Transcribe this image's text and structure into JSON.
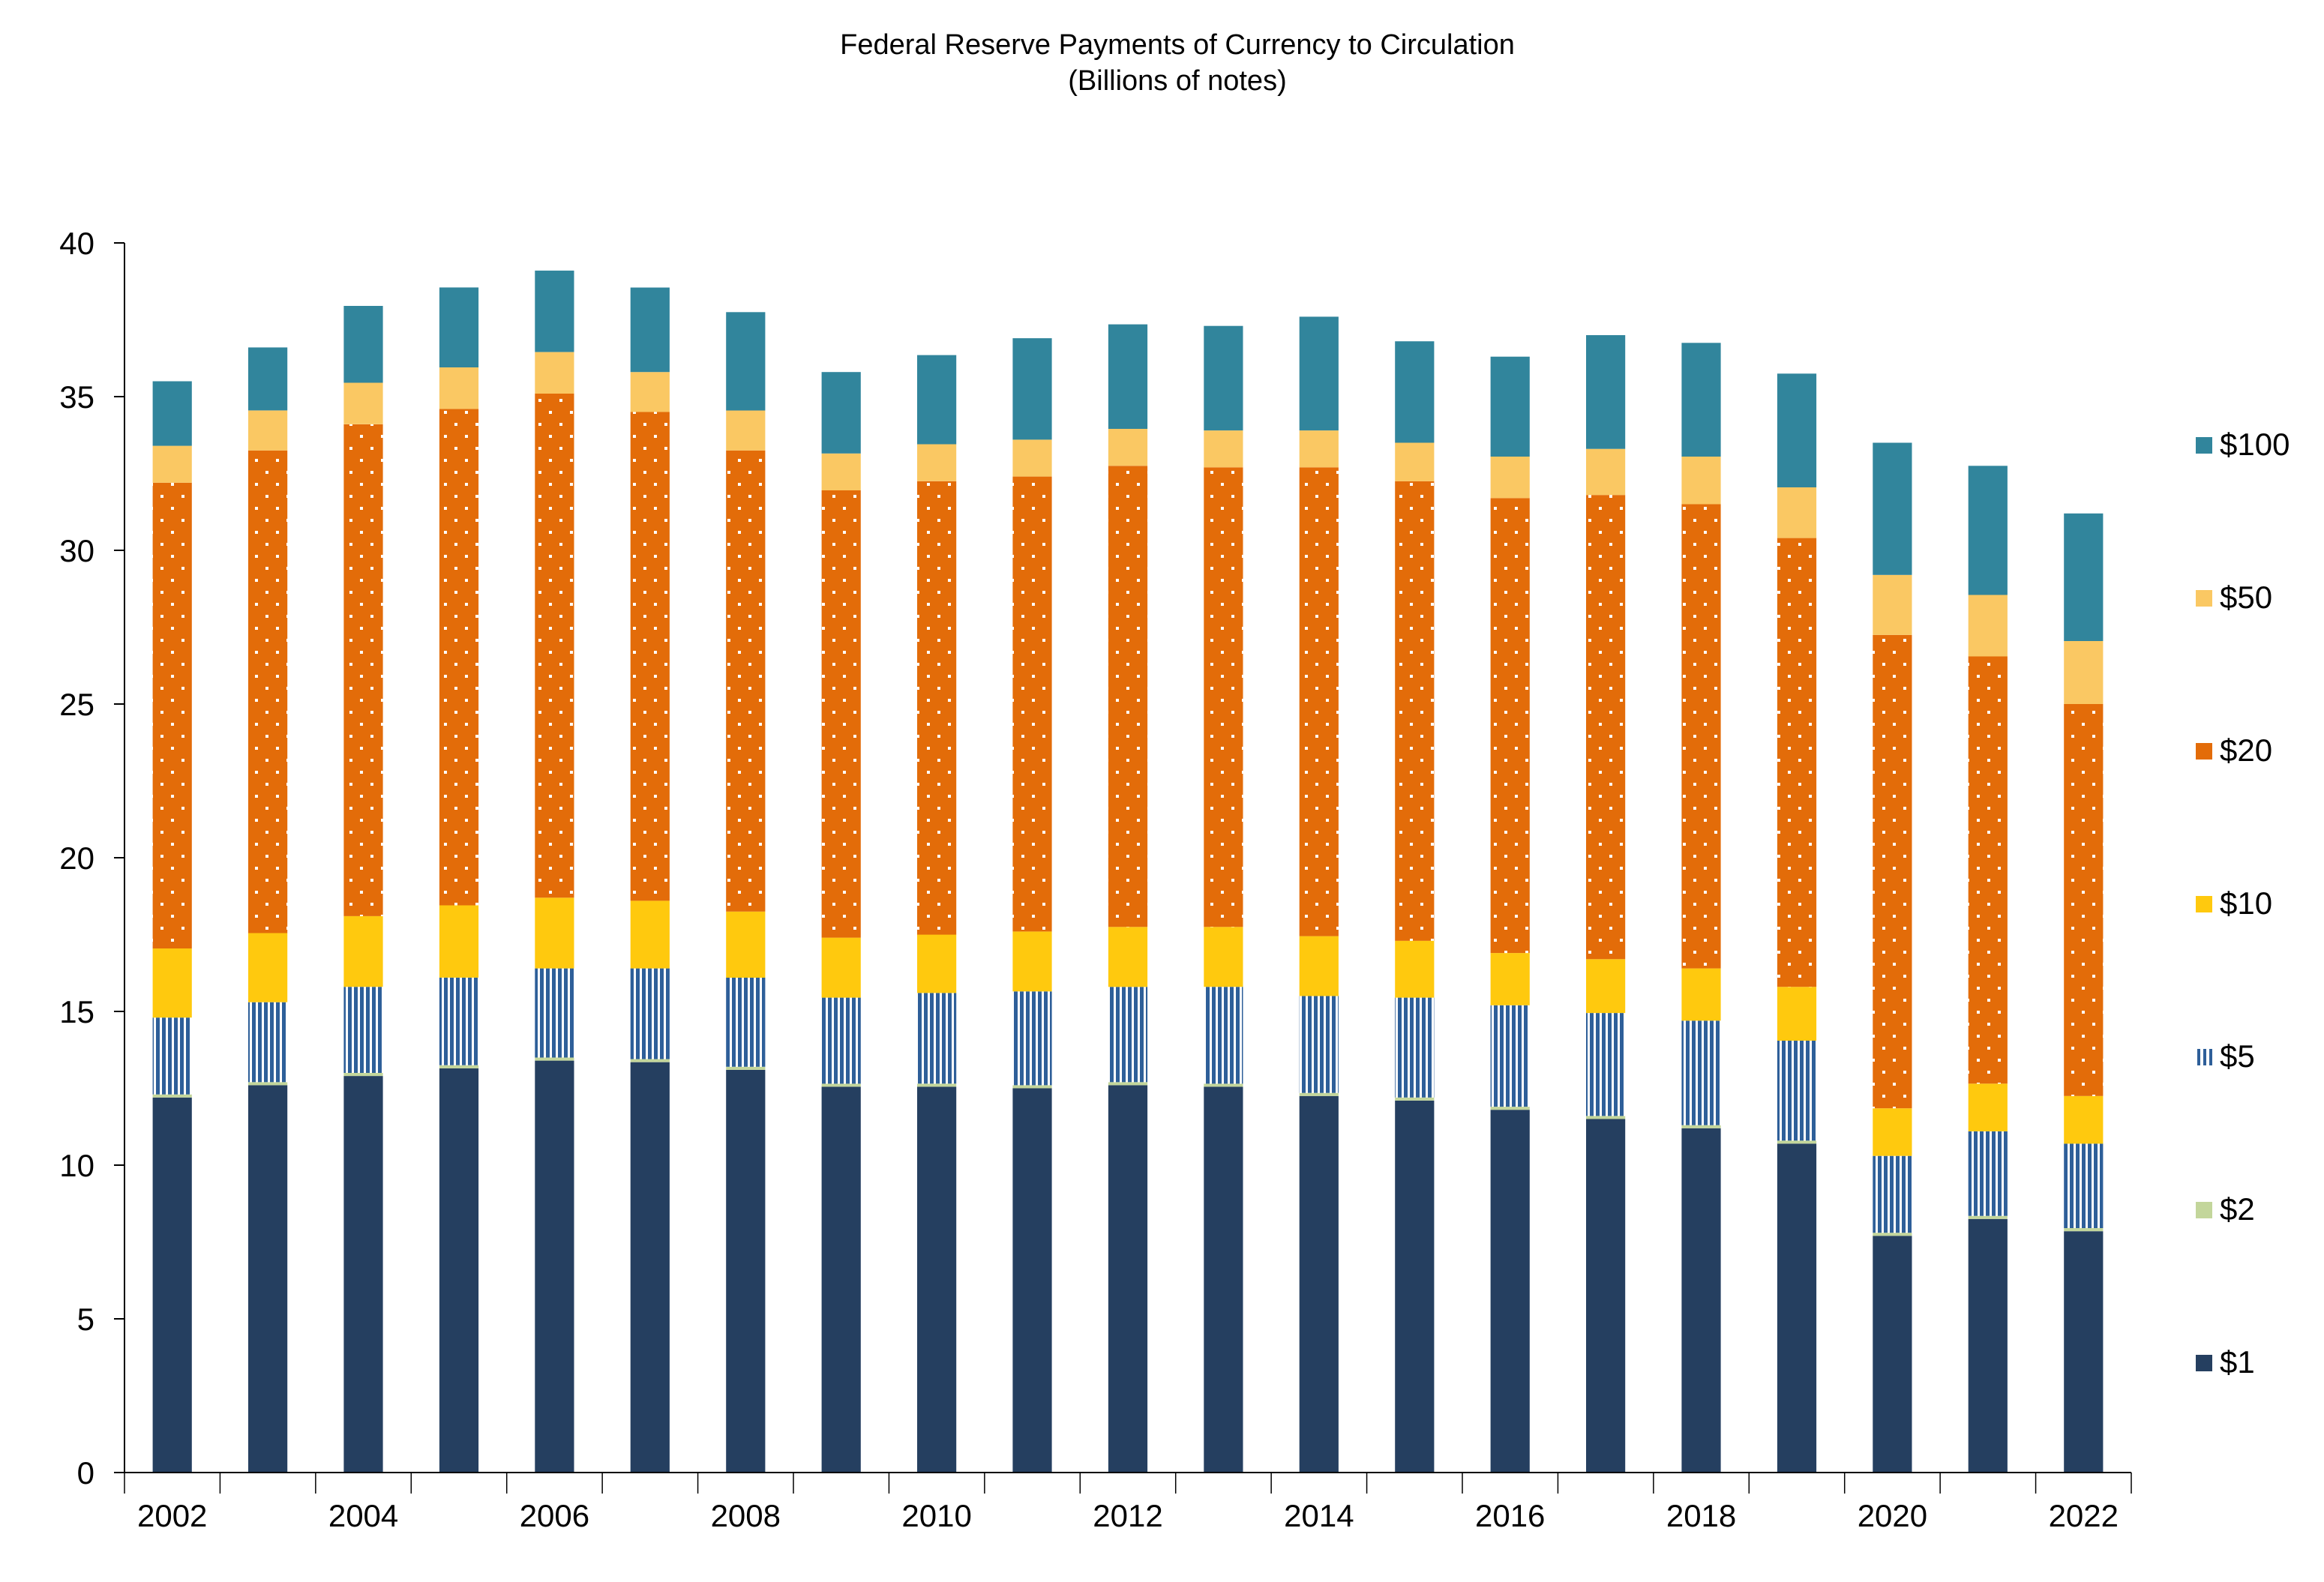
{
  "chart_data": {
    "type": "bar",
    "stacked": true,
    "title": "Federal Reserve Payments of Currency to Circulation",
    "subtitle": "(Billions of notes)",
    "xlabel": "",
    "ylabel": "",
    "ylim": [
      0,
      40
    ],
    "yticks": [
      0,
      5,
      10,
      15,
      20,
      25,
      30,
      35,
      40
    ],
    "grid": false,
    "legend_position": "right",
    "categories": [
      "2002",
      "2003",
      "2004",
      "2005",
      "2006",
      "2007",
      "2008",
      "2009",
      "2010",
      "2011",
      "2012",
      "2013",
      "2014",
      "2015",
      "2016",
      "2017",
      "2018",
      "2019",
      "2020",
      "2021",
      "2022"
    ],
    "xtick_labels": [
      "2002",
      "",
      "2004",
      "",
      "2006",
      "",
      "2008",
      "",
      "2010",
      "",
      "2012",
      "",
      "2014",
      "",
      "2016",
      "",
      "2018",
      "",
      "2020",
      "",
      "2022"
    ],
    "series": [
      {
        "name": "$1",
        "color": "#253f60",
        "pattern": "solid",
        "values": [
          12.2,
          12.6,
          12.9,
          13.15,
          13.4,
          13.35,
          13.1,
          12.55,
          12.55,
          12.5,
          12.6,
          12.55,
          12.25,
          12.1,
          11.8,
          11.5,
          11.2,
          10.7,
          7.7,
          8.25,
          7.85
        ]
      },
      {
        "name": "$2",
        "color": "#c3d69b",
        "pattern": "solid",
        "values": [
          0.1,
          0.1,
          0.1,
          0.1,
          0.1,
          0.1,
          0.1,
          0.1,
          0.1,
          0.1,
          0.1,
          0.1,
          0.1,
          0.1,
          0.1,
          0.1,
          0.1,
          0.1,
          0.1,
          0.1,
          0.1
        ]
      },
      {
        "name": "$5",
        "color": "#2e5f99",
        "pattern": "vertical-stripes",
        "values": [
          2.5,
          2.6,
          2.8,
          2.85,
          2.9,
          2.95,
          2.9,
          2.8,
          2.95,
          3.05,
          3.1,
          3.15,
          3.15,
          3.25,
          3.3,
          3.35,
          3.4,
          3.25,
          2.5,
          2.75,
          2.75
        ]
      },
      {
        "name": "$10",
        "color": "#ffc90e",
        "pattern": "solid",
        "values": [
          2.25,
          2.25,
          2.3,
          2.35,
          2.3,
          2.2,
          2.15,
          1.95,
          1.9,
          1.95,
          1.95,
          1.95,
          1.95,
          1.85,
          1.7,
          1.75,
          1.7,
          1.75,
          1.55,
          1.55,
          1.55
        ]
      },
      {
        "name": "$20",
        "color": "#e36c09",
        "pattern": "dots",
        "values": [
          15.15,
          15.7,
          16.0,
          16.15,
          16.4,
          15.9,
          15.0,
          14.55,
          14.75,
          14.8,
          15.0,
          14.95,
          15.25,
          14.95,
          14.8,
          15.1,
          15.1,
          14.6,
          15.4,
          13.9,
          12.75
        ]
      },
      {
        "name": "$50",
        "color": "#fac863",
        "pattern": "solid",
        "values": [
          1.2,
          1.3,
          1.35,
          1.35,
          1.35,
          1.3,
          1.3,
          1.2,
          1.2,
          1.2,
          1.2,
          1.2,
          1.2,
          1.25,
          1.35,
          1.5,
          1.55,
          1.65,
          1.95,
          2.0,
          2.05
        ]
      },
      {
        "name": "$100",
        "color": "#31859c",
        "pattern": "solid",
        "values": [
          2.1,
          2.05,
          2.5,
          2.6,
          2.65,
          2.75,
          3.2,
          2.65,
          2.9,
          3.3,
          3.4,
          3.4,
          3.7,
          3.3,
          3.25,
          3.7,
          3.7,
          3.7,
          4.3,
          4.2,
          4.15
        ]
      }
    ],
    "legend_order": [
      "$100",
      "$50",
      "$20",
      "$10",
      "$5",
      "$2",
      "$1"
    ]
  }
}
